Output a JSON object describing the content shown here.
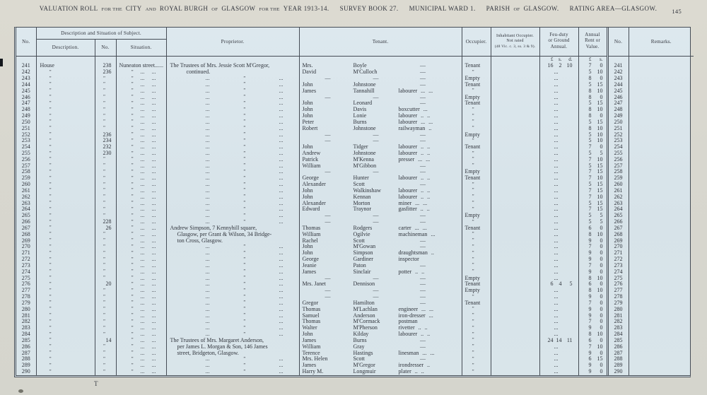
{
  "page": {
    "title_segments": [
      {
        "t": "VALUATION ROLL"
      },
      {
        "t": "FOR THE",
        "sm": 1
      },
      {
        "t": "CITY"
      },
      {
        "t": "AND",
        "sm": 1
      },
      {
        "t": "ROYAL BURGH"
      },
      {
        "t": "OF",
        "sm": 1
      },
      {
        "t": "GLASGOW"
      },
      {
        "t": "FOR THE",
        "sm": 1
      },
      {
        "t": "YEAR 1913-14."
      },
      {
        "t": "SURVEY BOOK 27.",
        "gap": 1
      },
      {
        "t": "MUNICIPAL WARD 1.",
        "gap": 1
      },
      {
        "t": "PARISH",
        "gap": 1
      },
      {
        "t": "OF",
        "sm": 1
      },
      {
        "t": "GLASGOW."
      },
      {
        "t": "RATING AREA—GLASGOW.",
        "gap": 1
      }
    ],
    "page_number": "145"
  },
  "colors": {
    "paper": "#d9e5eb",
    "ink": "#2f333b",
    "rule_line": "#454c55",
    "page_band": "#d8d7cf"
  },
  "table": {
    "headers": {
      "no": "No.",
      "desc_group": "Description and Situation of Subject.",
      "description": "Description.",
      "hno": "No.",
      "situation": "Situation.",
      "proprietor": "Proprietor.",
      "tenant": "Tenant.",
      "occupier": "Occupier.",
      "inhabitant_lines": [
        "Inhabitant Occupier.",
        "Not rated",
        "(48 Vic. c. 3, ss. 3 & 9)."
      ],
      "feu_lines": [
        "Feu-duty",
        "or Ground",
        "Annual."
      ],
      "annual_lines": [
        "Annual",
        "Rent or",
        "Value."
      ],
      "no2": "No.",
      "remarks": "Remarks.",
      "feu_units": [
        "£",
        "s.",
        "d."
      ],
      "rent_units": [
        "£",
        "s."
      ]
    },
    "catchword": "T",
    "rows": [
      {
        "n": "241",
        "d": "House",
        "h": "238",
        "s": "Nuneaton street...",
        "p": "The Trustees of Mrs. Jessie Scott M'Gregor,",
        "tf": "Mrs.",
        "tl": "Boyle",
        "tc": "—",
        "o": "Tenant",
        "f": "16 2 10",
        "r": "7 0"
      },
      {
        "n": "242",
        "d": "”",
        "h": "236",
        "s": "”",
        "p": "continued.",
        "pi": 2,
        "tf": "David",
        "tl": "M'Culloch",
        "tc": "—",
        "o": "”",
        "f": "...",
        "r": "5 10"
      },
      {
        "n": "243",
        "d": "”",
        "h": "”",
        "s": "”",
        "p": null,
        "tf": "—",
        "tl": "—",
        "tc": "—",
        "o": "Empty",
        "f": "...",
        "r": "8 0"
      },
      {
        "n": "244",
        "d": "”",
        "h": "”",
        "s": "”",
        "p": null,
        "tf": "John",
        "tl": "Johnstone",
        "tc": "—",
        "o": "Tenant",
        "f": "...",
        "r": "5 15"
      },
      {
        "n": "245",
        "d": "”",
        "h": "”",
        "s": "”",
        "p": null,
        "tf": "James",
        "tl": "Tannahill",
        "tc": "labourer ... ...",
        "o": "”",
        "f": "...",
        "r": "8 10"
      },
      {
        "n": "246",
        "d": "”",
        "h": "”",
        "s": "”",
        "p": null,
        "tf": "—",
        "tl": "—",
        "tc": "—",
        "o": "Empty",
        "f": "...",
        "r": "8 0"
      },
      {
        "n": "247",
        "d": "”",
        "h": "”",
        "s": "”",
        "p": null,
        "tf": "John",
        "tl": "Leonard",
        "tc": "—",
        "o": "Tenant",
        "f": "...",
        "r": "5 15"
      },
      {
        "n": "248",
        "d": "”",
        "h": "”",
        "s": "”",
        "p": null,
        "tf": "John",
        "tl": "Davis",
        "tc": "boxcutter ...",
        "o": "”",
        "f": "...",
        "r": "8 10"
      },
      {
        "n": "249",
        "d": "”",
        "h": "”",
        "s": "”",
        "p": null,
        "tf": "John",
        "tl": "Lonie",
        "tc": "labourer .. ..",
        "o": "”",
        "f": "...",
        "r": "8 0"
      },
      {
        "n": "250",
        "d": "”",
        "h": "”",
        "s": "”",
        "p": null,
        "tf": "Peter",
        "tl": "Burns",
        "tc": "labourer ... ...",
        "o": "”",
        "f": "...",
        "r": "5 15"
      },
      {
        "n": "251",
        "d": "”",
        "h": "”",
        "s": "”",
        "p": null,
        "tf": "Robert",
        "tl": "Johnstone",
        "tc": "railwayman ..",
        "o": "”",
        "f": "...",
        "r": "8 10"
      },
      {
        "n": "252",
        "d": "”",
        "h": "236",
        "s": "”",
        "p": null,
        "tf": "—",
        "tl": "—",
        "tc": "—",
        "o": "Empty",
        "f": "...",
        "r": "5 10"
      },
      {
        "n": "253",
        "d": "”",
        "h": "234",
        "s": "”",
        "p": null,
        "tf": "—",
        "tl": "—",
        "tc": "—",
        "o": "”",
        "f": "...",
        "r": "5 10"
      },
      {
        "n": "254",
        "d": "”",
        "h": "232",
        "s": "”",
        "p": null,
        "tf": "John",
        "tl": "Tidger",
        "tc": "labourer .. ..",
        "o": "Tenant",
        "f": "...",
        "r": "7 0"
      },
      {
        "n": "255",
        "d": "”",
        "h": "230",
        "s": "”",
        "p": null,
        "tf": "Andrew",
        "tl": "Johnstone",
        "tc": "labourer .. ..",
        "o": "”",
        "f": "...",
        "r": "5 5"
      },
      {
        "n": "256",
        "d": "”",
        "h": "”",
        "s": "”",
        "p": null,
        "tf": "Patrick",
        "tl": "M'Kenna",
        "tc": "presser ... ...",
        "o": "”",
        "f": "...",
        "r": "7 10"
      },
      {
        "n": "257",
        "d": "”",
        "h": "”",
        "s": "”",
        "p": null,
        "tf": "William",
        "tl": "M'Gibbon",
        "tc": "—",
        "o": "”",
        "f": "...",
        "r": "5 15"
      },
      {
        "n": "258",
        "d": "”",
        "h": "”",
        "s": "”",
        "p": null,
        "tf": "—",
        "tl": "—",
        "tc": "—",
        "o": "Empty",
        "f": "...",
        "r": "7 15"
      },
      {
        "n": "259",
        "d": "”",
        "h": "”",
        "s": "”",
        "p": null,
        "tf": "George",
        "tl": "Hunter",
        "tc": "labourer .. ..",
        "o": "Tenant",
        "f": "...",
        "r": "7 10"
      },
      {
        "n": "260",
        "d": "”",
        "h": "”",
        "s": "”",
        "p": null,
        "tf": "Alexander",
        "tl": "Scott",
        "tc": "—",
        "o": "”",
        "f": "...",
        "r": "5 15"
      },
      {
        "n": "261",
        "d": "”",
        "h": "”",
        "s": "”",
        "p": null,
        "tf": "John",
        "tl": "Walkinshaw",
        "tc": "labourer .. ..",
        "o": "”",
        "f": "...",
        "r": "7 15"
      },
      {
        "n": "262",
        "d": "”",
        "h": "”",
        "s": "”",
        "p": null,
        "tf": "John",
        "tl": "Kennan",
        "tc": "labourer .. ..",
        "o": "”",
        "f": "...",
        "r": "7 10"
      },
      {
        "n": "263",
        "d": "”",
        "h": "”",
        "s": "”",
        "p": null,
        "tf": "Alexander",
        "tl": "Morton",
        "tc": "miner ... ...",
        "o": "”",
        "f": "...",
        "r": "5 15"
      },
      {
        "n": "264",
        "d": "”",
        "h": "”",
        "s": "”",
        "p": null,
        "tf": "Edward",
        "tl": "Traynor",
        "tc": "gasfitter .. ..",
        "o": "”",
        "f": "...",
        "r": "7 15"
      },
      {
        "n": "265",
        "d": "”",
        "h": "”",
        "s": "”",
        "p": null,
        "tf": "—",
        "tl": "—",
        "tc": "—",
        "o": "Empty",
        "f": "...",
        "r": "5 5"
      },
      {
        "n": "266",
        "d": "”",
        "h": "228",
        "s": "”",
        "p": null,
        "tf": "—",
        "tl": "—",
        "tc": "—",
        "o": "”",
        "f": "...",
        "r": "5 5"
      },
      {
        "n": "267",
        "d": "”",
        "h": "26",
        "s": "”",
        "p": "Andrew Simpson, 7 Kennyhill square,",
        "tf": "Thomas",
        "tl": "Rodgers",
        "tc": "carter ... ...",
        "o": "Tenant",
        "f": "...",
        "r": "6 0"
      },
      {
        "n": "268",
        "d": "”",
        "h": "”",
        "s": "”",
        "p": "Glasgow, per Grant & Wilson, 34 Bridge-",
        "pi": 1,
        "tf": "William",
        "tl": "Ogilvie",
        "tc": "machineman ...",
        "o": "”",
        "f": "...",
        "r": "8 10"
      },
      {
        "n": "269",
        "d": "”",
        "h": "”",
        "s": "”",
        "p": "ton Cross, Glasgow.",
        "pi": 1,
        "tf": "Rachel",
        "tl": "Scott",
        "tc": "—",
        "o": "”",
        "f": "...",
        "r": "9 0"
      },
      {
        "n": "270",
        "d": "”",
        "h": "”",
        "s": "”",
        "p": null,
        "tf": "John",
        "tl": "M'Gowan",
        "tc": "—",
        "o": "”",
        "f": "...",
        "r": "7 0"
      },
      {
        "n": "271",
        "d": "”",
        "h": "”",
        "s": "”",
        "p": null,
        "tf": "John",
        "tl": "Simpson",
        "tc": "draughtsman ..",
        "o": "”",
        "f": "...",
        "r": "9 0"
      },
      {
        "n": "272",
        "d": "”",
        "h": "”",
        "s": "”",
        "p": null,
        "tf": "George",
        "tl": "Gardiner",
        "tc": "inspector",
        "o": "”",
        "f": "...",
        "r": "9 0"
      },
      {
        "n": "273",
        "d": "”",
        "h": "”",
        "s": "”",
        "p": null,
        "tf": "Jeanie",
        "tl": "Paton",
        "tc": "—",
        "o": "”",
        "f": "...",
        "r": "7 0"
      },
      {
        "n": "274",
        "d": "”",
        "h": "”",
        "s": "”",
        "p": null,
        "tf": "James",
        "tl": "Sinclair",
        "tc": "potter .. ..",
        "o": "”",
        "f": "...",
        "r": "9 0"
      },
      {
        "n": "275",
        "d": "”",
        "h": "”",
        "s": "”",
        "p": null,
        "tf": "—",
        "tl": "—",
        "tc": "—",
        "o": "Empty",
        "f": "...",
        "r": "8 10"
      },
      {
        "n": "276",
        "d": "”",
        "h": "20",
        "s": "”",
        "p": null,
        "tf": "Mrs. Janet",
        "tl": "Dennison",
        "tc": "—",
        "o": "Tenant",
        "f": "6 4 5",
        "r": "6 0"
      },
      {
        "n": "277",
        "d": "”",
        "h": "”",
        "s": "”",
        "p": null,
        "tf": "—",
        "tl": "—",
        "tc": "—",
        "o": "Empty",
        "f": "...",
        "r": "8 10"
      },
      {
        "n": "278",
        "d": "”",
        "h": "”",
        "s": "”",
        "p": null,
        "tf": "—",
        "tl": "—",
        "tc": "—",
        "o": "”",
        "f": "...",
        "r": "9 0"
      },
      {
        "n": "279",
        "d": "”",
        "h": "”",
        "s": "”",
        "p": null,
        "tf": "Gregor",
        "tl": "Hamilton",
        "tc": "—",
        "o": "Tenant",
        "f": "...",
        "r": "7 0"
      },
      {
        "n": "280",
        "d": "”",
        "h": "”",
        "s": "”",
        "p": null,
        "tf": "Thomas",
        "tl": "M'Lachlan",
        "tc": "engineer ... ...",
        "o": "”",
        "f": "...",
        "r": "9 0"
      },
      {
        "n": "281",
        "d": "”",
        "h": "”",
        "s": "”",
        "p": null,
        "tf": "Samuel",
        "tl": "Anderson",
        "tc": "iron-dresser ...",
        "o": "”",
        "f": "...",
        "r": "9 0"
      },
      {
        "n": "282",
        "d": "”",
        "h": "”",
        "s": "”",
        "p": null,
        "tf": "Thomas",
        "tl": "M'Cormack",
        "tc": "postman",
        "o": "”",
        "f": "...",
        "r": "7 0"
      },
      {
        "n": "283",
        "d": "”",
        "h": "”",
        "s": "”",
        "p": null,
        "tf": "Walter",
        "tl": "M'Pherson",
        "tc": "rivetter .. ..",
        "o": "”",
        "f": "...",
        "r": "9 0"
      },
      {
        "n": "284",
        "d": "”",
        "h": "”",
        "s": "”",
        "p": null,
        "tf": "John",
        "tl": "Kilday",
        "tc": "labourer .. ..",
        "o": "”",
        "f": "...",
        "r": "8 10"
      },
      {
        "n": "285",
        "d": "”",
        "h": "14",
        "s": "”",
        "p": "The Trustees of Mrs. Margaret Anderson,",
        "tf": "James",
        "tl": "Burns",
        "tc": "—",
        "o": "”",
        "f": "24 14 11",
        "r": "6 0"
      },
      {
        "n": "286",
        "d": "”",
        "h": "”",
        "s": "”",
        "p": "per James L. Morgan & Son, 146 James",
        "pi": 1,
        "tf": "William",
        "tl": "Gray",
        "tc": "—",
        "o": "”",
        "f": "...",
        "r": "7 10"
      },
      {
        "n": "287",
        "d": "”",
        "h": "”",
        "s": "”",
        "p": "street, Bridgeton, Glasgow.",
        "pi": 1,
        "tf": "Terence",
        "tl": "Hastings",
        "tc": "linesman ... ...",
        "o": "”",
        "f": "...",
        "r": "9 0"
      },
      {
        "n": "288",
        "d": "”",
        "h": "”",
        "s": "”",
        "p": null,
        "tf": "Mrs. Helen",
        "tl": "Scott",
        "tc": "—",
        "o": "”",
        "f": "...",
        "r": "6 15"
      },
      {
        "n": "289",
        "d": "”",
        "h": "”",
        "s": "”",
        "p": null,
        "tf": "James",
        "tl": "M'Gregor",
        "tc": "irondresser ..",
        "o": "”",
        "f": "...",
        "r": "9 0"
      },
      {
        "n": "290",
        "d": "”",
        "h": "”",
        "s": "”",
        "p": null,
        "tf": "Harry M.",
        "tl": "Longmuir",
        "tc": "plater .. ..",
        "o": "”",
        "f": "...",
        "r": "9 0"
      }
    ]
  }
}
